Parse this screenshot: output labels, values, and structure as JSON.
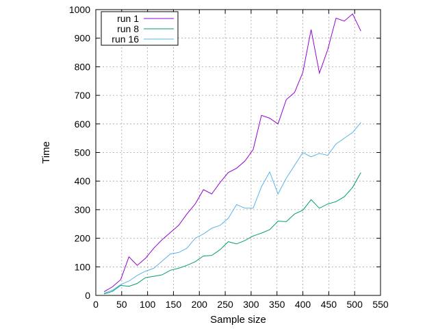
{
  "chart_data": {
    "type": "line",
    "xlabel": "Sample size",
    "ylabel": "Time",
    "xlim": [
      0,
      550
    ],
    "ylim": [
      0,
      1000
    ],
    "x_ticks": [
      0,
      50,
      100,
      150,
      200,
      250,
      300,
      350,
      400,
      450,
      500,
      550
    ],
    "y_ticks": [
      0,
      100,
      200,
      300,
      400,
      500,
      600,
      700,
      800,
      900,
      1000
    ],
    "grid": true,
    "legend_position": "top-left",
    "series": [
      {
        "name": "run 1",
        "color": "#9400d3",
        "x": [
          16,
          32,
          48,
          64,
          80,
          96,
          112,
          128,
          144,
          160,
          176,
          192,
          208,
          224,
          240,
          256,
          272,
          288,
          304,
          320,
          336,
          352,
          368,
          384,
          400,
          416,
          432,
          448,
          464,
          480,
          496,
          512
        ],
        "y": [
          13,
          30,
          55,
          135,
          105,
          130,
          165,
          195,
          220,
          245,
          285,
          320,
          370,
          355,
          395,
          430,
          445,
          470,
          510,
          630,
          620,
          600,
          685,
          710,
          780,
          930,
          778,
          860,
          970,
          960,
          985,
          925
        ]
      },
      {
        "name": "run 8",
        "color": "#009e73",
        "x": [
          16,
          32,
          48,
          64,
          80,
          96,
          112,
          128,
          144,
          160,
          176,
          192,
          208,
          224,
          240,
          256,
          272,
          288,
          304,
          320,
          336,
          352,
          368,
          384,
          400,
          416,
          432,
          448,
          464,
          480,
          496,
          512
        ],
        "y": [
          5,
          14,
          35,
          32,
          42,
          62,
          67,
          72,
          88,
          95,
          105,
          118,
          138,
          140,
          160,
          188,
          180,
          192,
          208,
          218,
          230,
          260,
          258,
          285,
          298,
          335,
          305,
          320,
          328,
          345,
          378,
          430
        ]
      },
      {
        "name": "run 16",
        "color": "#56b4e9",
        "x": [
          16,
          32,
          48,
          64,
          80,
          96,
          112,
          128,
          144,
          160,
          176,
          192,
          208,
          224,
          240,
          256,
          272,
          288,
          304,
          320,
          336,
          352,
          368,
          384,
          400,
          416,
          432,
          448,
          464,
          480,
          496,
          512
        ],
        "y": [
          8,
          18,
          38,
          50,
          70,
          85,
          95,
          120,
          145,
          150,
          165,
          200,
          215,
          235,
          245,
          270,
          318,
          305,
          305,
          380,
          432,
          355,
          410,
          455,
          500,
          485,
          497,
          490,
          530,
          550,
          570,
          605
        ]
      }
    ]
  }
}
